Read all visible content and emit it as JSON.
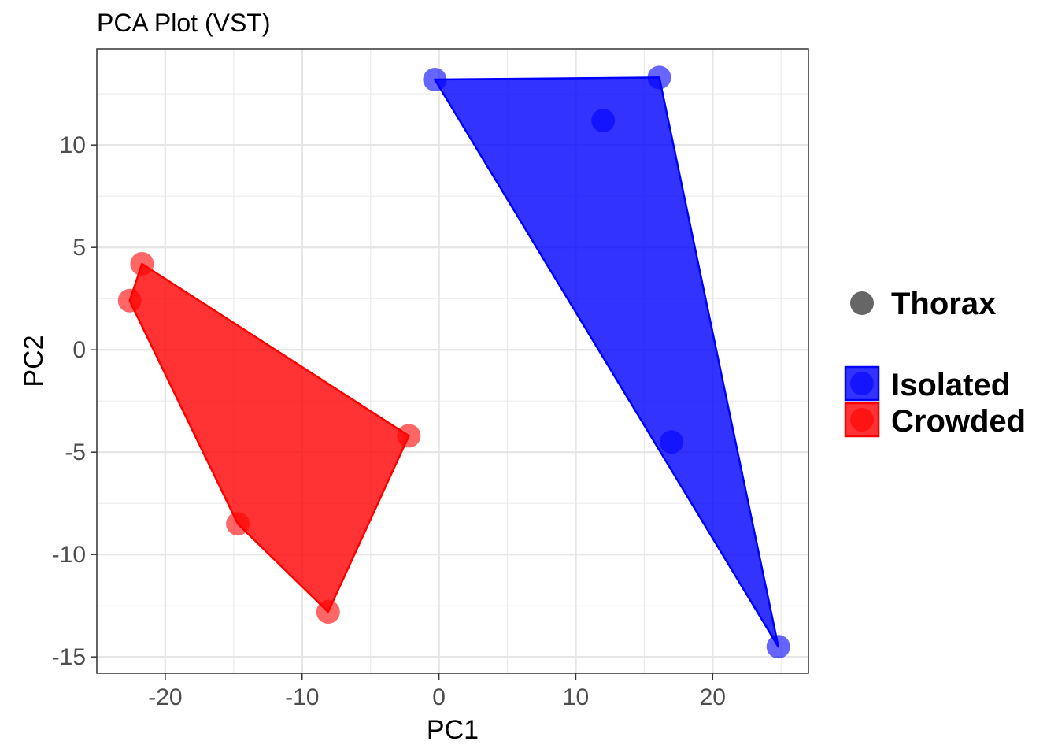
{
  "chart_data": {
    "type": "scatter",
    "title": "PCA Plot (VST)",
    "xlabel": "PC1",
    "ylabel": "PC2",
    "xlim": [
      -25,
      27
    ],
    "ylim": [
      -15.8,
      14.7
    ],
    "x_ticks": [
      -20,
      -10,
      0,
      10,
      20
    ],
    "x_tick_labels": [
      "-20",
      "-10",
      "0",
      "10",
      "20"
    ],
    "y_ticks": [
      -15,
      -10,
      -5,
      0,
      5,
      10
    ],
    "y_tick_labels": [
      "-15",
      "-10",
      "-5",
      "0",
      "5",
      "10"
    ],
    "grid": true,
    "legend_position": "right",
    "shape_legend": {
      "label": "Thorax",
      "color": "#666666"
    },
    "hulls": true,
    "series": [
      {
        "name": "Isolated",
        "color": "#0000ff",
        "points": [
          {
            "x": -0.3,
            "y": 13.2
          },
          {
            "x": 16.1,
            "y": 13.3
          },
          {
            "x": 12.0,
            "y": 11.2
          },
          {
            "x": 17.0,
            "y": -4.5
          },
          {
            "x": 24.8,
            "y": -14.5
          }
        ],
        "hull": [
          0,
          1,
          4
        ]
      },
      {
        "name": "Crowded",
        "color": "#ff0000",
        "points": [
          {
            "x": -21.7,
            "y": 4.2
          },
          {
            "x": -22.6,
            "y": 2.4
          },
          {
            "x": -2.2,
            "y": -4.2
          },
          {
            "x": -14.7,
            "y": -8.5
          },
          {
            "x": -8.1,
            "y": -12.8
          }
        ],
        "hull": [
          0,
          2,
          4,
          3,
          1
        ]
      }
    ]
  }
}
